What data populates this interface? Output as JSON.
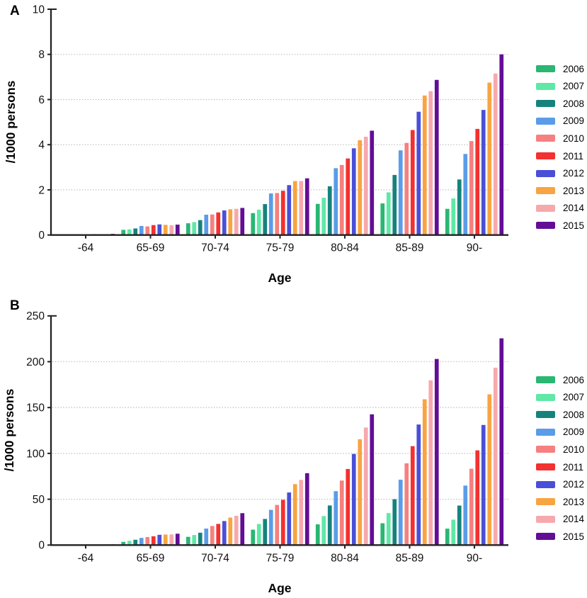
{
  "figure_type": "two-panel grouped bar chart",
  "chart_data": [
    {
      "type": "bar",
      "panel": "A",
      "ylabel": "/1000 persons",
      "xlabel": "Age",
      "ylim": [
        0,
        10
      ],
      "ytick_step": 2,
      "yticks": [
        "0",
        "2",
        "4",
        "6",
        "8",
        "10"
      ],
      "grid": "dotted horizontal gridlines at 2,4,6,8",
      "legend_position": "right",
      "categories": [
        "-64",
        "65-69",
        "70-74",
        "75-79",
        "80-84",
        "85-89",
        "90-"
      ],
      "series": [
        {
          "name": "2006",
          "color": "#2ab673",
          "values": [
            0.02,
            0.23,
            0.52,
            0.97,
            1.38,
            1.4,
            1.16
          ]
        },
        {
          "name": "2007",
          "color": "#5fe8a6",
          "values": [
            0.02,
            0.25,
            0.57,
            1.12,
            1.65,
            1.89,
            1.62
          ]
        },
        {
          "name": "2008",
          "color": "#15837c",
          "values": [
            0.03,
            0.29,
            0.66,
            1.37,
            2.16,
            2.66,
            2.46
          ]
        },
        {
          "name": "2009",
          "color": "#5b9ce8",
          "values": [
            0.03,
            0.4,
            0.9,
            1.84,
            2.96,
            3.75,
            3.59
          ]
        },
        {
          "name": "2010",
          "color": "#f5807f",
          "values": [
            0.03,
            0.38,
            0.91,
            1.86,
            3.1,
            4.08,
            4.16
          ]
        },
        {
          "name": "2011",
          "color": "#f23130",
          "values": [
            0.03,
            0.44,
            1.0,
            1.96,
            3.39,
            4.65,
            4.7
          ]
        },
        {
          "name": "2012",
          "color": "#4a4fd8",
          "values": [
            0.04,
            0.47,
            1.09,
            2.21,
            3.84,
            5.46,
            5.54
          ]
        },
        {
          "name": "2013",
          "color": "#f8a442",
          "values": [
            0.04,
            0.45,
            1.14,
            2.39,
            4.2,
            6.18,
            6.75
          ]
        },
        {
          "name": "2014",
          "color": "#f6a9ad",
          "values": [
            0.04,
            0.43,
            1.16,
            2.39,
            4.35,
            6.37,
            7.15
          ]
        },
        {
          "name": "2015",
          "color": "#630d96",
          "values": [
            0.05,
            0.46,
            1.2,
            2.51,
            4.62,
            6.87,
            8.0
          ]
        }
      ]
    },
    {
      "type": "bar",
      "panel": "B",
      "ylabel": "/1000 persons",
      "xlabel": "Age",
      "ylim": [
        0,
        250
      ],
      "ytick_step": 50,
      "yticks": [
        "0",
        "50",
        "100",
        "150",
        "200",
        "250"
      ],
      "grid": "dotted horizontal gridlines at 50,100,150,200",
      "legend_position": "right",
      "categories": [
        "-64",
        "65-69",
        "70-74",
        "75-79",
        "80-84",
        "85-89",
        "90-"
      ],
      "series": [
        {
          "name": "2006",
          "color": "#2ab673",
          "values": [
            0.3,
            3.5,
            9.0,
            16.8,
            22.6,
            23.8,
            17.9
          ]
        },
        {
          "name": "2007",
          "color": "#5fe8a6",
          "values": [
            0.4,
            4.6,
            11.0,
            23.0,
            31.6,
            34.9,
            27.7
          ]
        },
        {
          "name": "2008",
          "color": "#15837c",
          "values": [
            0.4,
            5.8,
            13.5,
            28.5,
            43.2,
            50.0,
            43.1
          ]
        },
        {
          "name": "2009",
          "color": "#5b9ce8",
          "values": [
            0.5,
            7.8,
            18.0,
            38.4,
            58.8,
            71.3,
            64.9
          ]
        },
        {
          "name": "2010",
          "color": "#f5807f",
          "values": [
            0.5,
            8.8,
            20.8,
            43.8,
            70.4,
            89.2,
            83.3
          ]
        },
        {
          "name": "2011",
          "color": "#f23130",
          "values": [
            0.6,
            9.6,
            23.1,
            49.4,
            83.0,
            107.9,
            103.3
          ]
        },
        {
          "name": "2012",
          "color": "#4a4fd8",
          "values": [
            0.6,
            11.2,
            26.2,
            57.4,
            99.4,
            131.5,
            131.0
          ]
        },
        {
          "name": "2013",
          "color": "#f8a442",
          "values": [
            0.7,
            11.5,
            30.0,
            66.5,
            115.4,
            159.0,
            164.4
          ]
        },
        {
          "name": "2014",
          "color": "#f6a9ad",
          "values": [
            0.7,
            11.6,
            31.9,
            71.1,
            128.2,
            179.7,
            193.5
          ]
        },
        {
          "name": "2015",
          "color": "#630d96",
          "values": [
            0.8,
            12.4,
            34.8,
            78.4,
            142.6,
            203.0,
            225.5
          ]
        }
      ]
    }
  ],
  "style": {
    "axis_color": "#222222",
    "gridline_color": "#b5b5b5",
    "text_color": "#111111",
    "background": "#ffffff"
  }
}
